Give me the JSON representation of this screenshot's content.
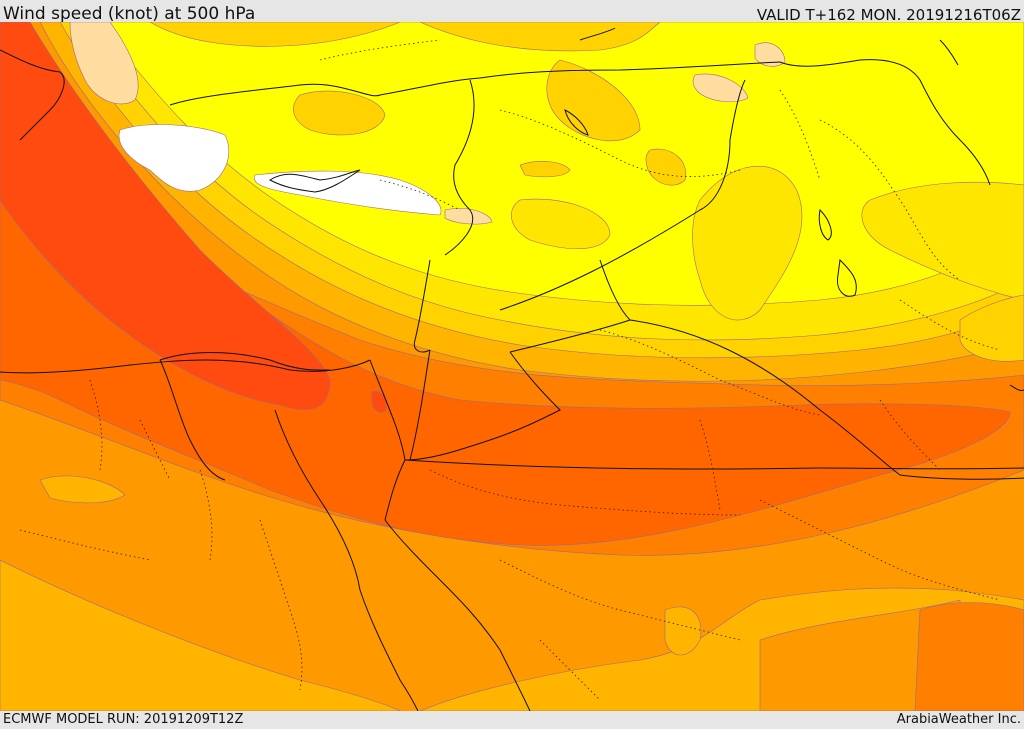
{
  "header": {
    "title": "Wind speed (knot) at 500 hPa",
    "valid": "VALID T+162 MON. 20191216T06Z"
  },
  "footer": {
    "model_run": "ECMWF MODEL RUN: 20191209T12Z",
    "credit": "ArabiaWeather Inc."
  },
  "map": {
    "variable": "Wind speed",
    "units": "knot",
    "level": "500 hPa",
    "colors": {
      "calm": "#ffffff",
      "band_1": "#ffff00",
      "band_2": "#ffe600",
      "band_3": "#ffd200",
      "band_4": "#ffb400",
      "band_5": "#ff9900",
      "band_6": "#ff7f00",
      "band_7": "#ff6600",
      "band_8": "#ff4a10",
      "light_patch": "#ffdca0"
    }
  }
}
